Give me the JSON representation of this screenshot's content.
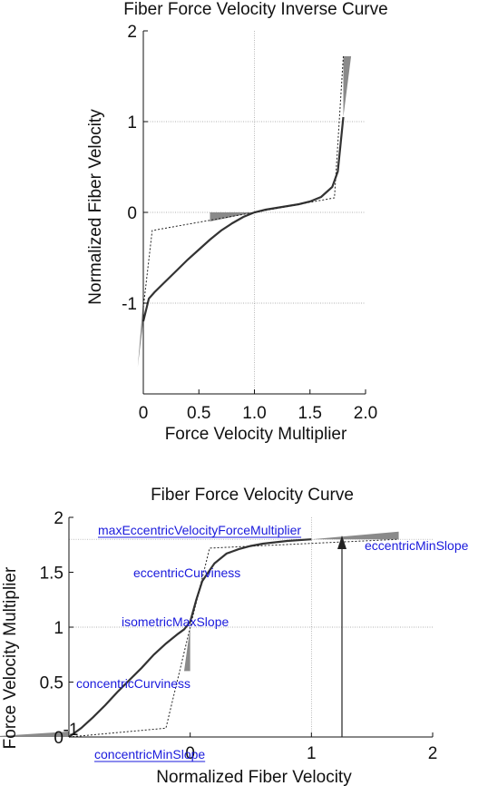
{
  "chart_data": [
    {
      "type": "line",
      "title": "Fiber Force Velocity Inverse Curve",
      "xlabel": "Force Velocity Multiplier",
      "ylabel": "Normalized Fiber Velocity",
      "xlim": [
        0,
        2.0
      ],
      "ylim": [
        -2,
        2
      ],
      "x_ticks": [
        {
          "value": 0,
          "label": "0"
        },
        {
          "value": 0.5,
          "label": "0.5"
        },
        {
          "value": 1.0,
          "label": "1.0"
        },
        {
          "value": 1.5,
          "label": "1.5"
        },
        {
          "value": 2.0,
          "label": "2.0"
        }
      ],
      "y_ticks": [
        {
          "value": -1,
          "label": "-1"
        },
        {
          "value": 0,
          "label": "0"
        },
        {
          "value": 1,
          "label": "1"
        },
        {
          "value": 2,
          "label": "2"
        }
      ],
      "grid_lines": {
        "x": [
          1.0
        ],
        "y": [
          -1,
          0,
          1
        ]
      },
      "series": [
        {
          "style": "solid",
          "color": "#333333",
          "x": [
            0.0,
            0.05,
            0.1,
            0.2,
            0.3,
            0.4,
            0.5,
            0.6,
            0.7,
            0.8,
            0.9,
            1.0,
            1.1,
            1.2,
            1.3,
            1.4,
            1.5,
            1.6,
            1.7,
            1.75,
            1.8
          ],
          "y": [
            -1.2,
            -0.95,
            -0.88,
            -0.76,
            -0.64,
            -0.52,
            -0.41,
            -0.3,
            -0.2,
            -0.12,
            -0.05,
            0.0,
            0.03,
            0.05,
            0.07,
            0.09,
            0.12,
            0.17,
            0.28,
            0.45,
            1.05
          ]
        },
        {
          "style": "dashed",
          "color": "#222222",
          "x": [
            0.0,
            0.08,
            1.0,
            1.72,
            1.8
          ],
          "y": [
            -1.05,
            -0.2,
            0.0,
            0.16,
            1.72
          ]
        }
      ],
      "shaded_regions": [
        {
          "x": [
            0.0,
            0.0,
            -0.05
          ],
          "y": [
            -1.2,
            -0.95,
            -1.7
          ]
        },
        {
          "x": [
            0.6,
            1.0,
            0.6
          ],
          "y": [
            0.0,
            0.0,
            -0.1
          ]
        },
        {
          "x": [
            1.8,
            1.8,
            1.87
          ],
          "y": [
            1.05,
            1.72,
            1.72
          ]
        }
      ]
    },
    {
      "type": "line",
      "title": "Fiber Force Velocity Curve",
      "xlabel": "Normalized Fiber Velocity",
      "ylabel": "Force Velocity Multiplier",
      "xlim": [
        -1,
        2
      ],
      "ylim": [
        0,
        2
      ],
      "x_ticks": [
        {
          "value": -1,
          "label": "-1"
        },
        {
          "value": 0,
          "label": "0"
        },
        {
          "value": 1,
          "label": "1"
        },
        {
          "value": 2,
          "label": "2"
        }
      ],
      "y_ticks": [
        {
          "value": 0,
          "label": "0"
        },
        {
          "value": 0.5,
          "label": "0.5"
        },
        {
          "value": 1,
          "label": "1"
        },
        {
          "value": 1.5,
          "label": "1.5"
        },
        {
          "value": 2,
          "label": "2"
        }
      ],
      "grid_lines": {
        "x": [
          -1,
          1
        ],
        "y": [
          1,
          1.8
        ]
      },
      "series": [
        {
          "style": "solid",
          "color": "#333333",
          "x": [
            -1.0,
            -0.9,
            -0.8,
            -0.7,
            -0.6,
            -0.5,
            -0.4,
            -0.3,
            -0.2,
            -0.1,
            -0.05,
            0.0,
            0.05,
            0.1,
            0.2,
            0.3,
            0.4,
            0.5,
            0.6,
            0.8,
            1.0
          ],
          "y": [
            0.0,
            0.08,
            0.18,
            0.29,
            0.41,
            0.52,
            0.63,
            0.75,
            0.85,
            0.94,
            0.98,
            1.05,
            1.25,
            1.42,
            1.58,
            1.67,
            1.71,
            1.74,
            1.76,
            1.785,
            1.8
          ]
        },
        {
          "style": "dashed",
          "color": "#222222",
          "x": [
            -1.0,
            -0.2,
            0.0,
            0.16,
            1.72
          ],
          "y": [
            0.0,
            0.08,
            1.0,
            1.72,
            1.8
          ]
        }
      ],
      "shaded_regions": [
        {
          "x": [
            -1.0,
            -1.0,
            -1.7
          ],
          "y": [
            0.0,
            0.05,
            0.0
          ]
        },
        {
          "x": [
            0.0,
            -0.05,
            0.0
          ],
          "y": [
            1.0,
            0.6,
            0.6
          ]
        },
        {
          "x": [
            1.0,
            1.72,
            1.72
          ],
          "y": [
            1.8,
            1.8,
            1.87
          ]
        }
      ],
      "arrow": {
        "x": 1,
        "y_from": 0,
        "y_to": 1.8
      },
      "annotations": [
        {
          "text": "maxEccentricVelocityForceMultiplier",
          "underline": true
        },
        {
          "text": "eccentricMinSlope"
        },
        {
          "text": "eccentricCurviness"
        },
        {
          "text": "isometricMaxSlope"
        },
        {
          "text": "concentricCurviness"
        },
        {
          "text": "concentricMinSlope",
          "underline": true
        }
      ],
      "annotation_color": "#1a1adc"
    }
  ]
}
